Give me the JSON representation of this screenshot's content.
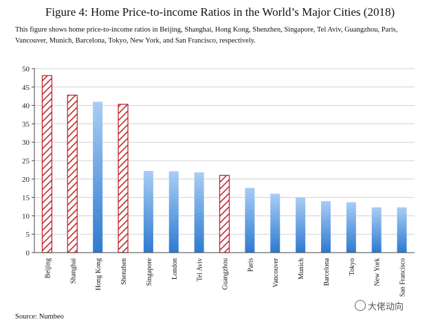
{
  "title": "Figure 4: Home Price-to-income Ratios in the World’s Major Cities (2018)",
  "description": "This figure shows home price-to-income ratios in Beijing, Shanghai, Hong Kong, Shenzhen, Singapore, Tel Aviv, Guangzhou, Paris, Vancouver, Munich, Barcelona, Tokyo, New York, and San Francisco, respectively.",
  "source": "Source: Numbeo",
  "watermark": "大佬动向",
  "colors": {
    "china_stroke": "#c0272d",
    "bar_top": "#a9cdf5",
    "bar_bottom": "#2e7ad1",
    "grid": "#d0d0d0"
  },
  "chart_data": {
    "type": "bar",
    "title": "Figure 4: Home Price-to-income Ratios in the World’s Major Cities (2018)",
    "xlabel": "",
    "ylabel": "",
    "ylim": [
      0,
      50
    ],
    "yticks": [
      0,
      5,
      10,
      15,
      20,
      25,
      30,
      35,
      40,
      45,
      50
    ],
    "categories": [
      "Beijing",
      "Shanghai",
      "Hong Kong",
      "Shenzhen",
      "Singapore",
      "London",
      "Tel Aviv",
      "Guangzhou",
      "Paris",
      "Vancouver",
      "Munich",
      "Barcelona",
      "Tokyo",
      "New York",
      "San Francisco"
    ],
    "values": [
      48.1,
      42.8,
      41.0,
      40.3,
      22.2,
      22.1,
      21.8,
      21.0,
      17.6,
      16.0,
      15.0,
      14.0,
      13.7,
      12.3,
      12.3
    ],
    "style": [
      "hatched",
      "hatched",
      "gradient",
      "hatched",
      "gradient",
      "gradient",
      "gradient",
      "hatched",
      "gradient",
      "gradient",
      "gradient",
      "gradient",
      "gradient",
      "gradient",
      "gradient"
    ],
    "grid": true
  }
}
